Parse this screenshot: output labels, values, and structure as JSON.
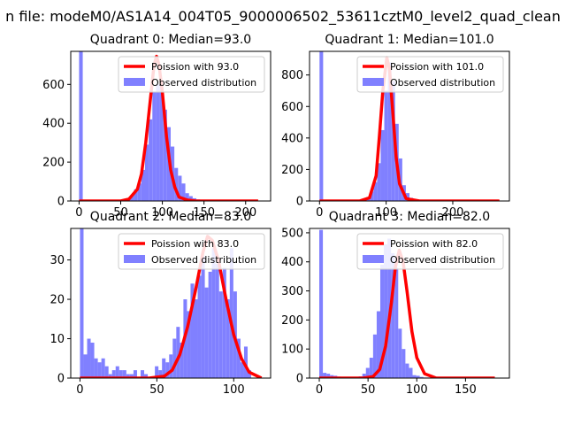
{
  "suptitle": "n file: modeM0/AS1A14_004T05_9000006502_53611cztM0_level2_quad_clean",
  "colors": {
    "hist": "#8080ff",
    "curve": "#ff0000",
    "axis": "#000000",
    "legend_edge": "#cccccc"
  },
  "chart_data": [
    {
      "type": "bar",
      "title": "Quadrant 0: Median=93.0",
      "xlabel": "",
      "ylabel": "",
      "xlim": [
        -10,
        230
      ],
      "ylim": [
        0,
        770
      ],
      "xticks": [
        0,
        50,
        100,
        150,
        200
      ],
      "yticks": [
        0,
        200,
        400,
        600
      ],
      "legend": {
        "position": "top-right",
        "curve_label": "Poission with 93.0",
        "hist_label": "Observed distribution"
      },
      "hist": {
        "bin_start": 0,
        "bin_width": 4.4,
        "values": [
          770,
          6,
          5,
          2,
          2,
          1,
          2,
          2,
          3,
          2,
          2,
          3,
          8,
          14,
          30,
          60,
          90,
          160,
          290,
          420,
          560,
          600,
          590,
          470,
          380,
          280,
          170,
          130,
          90,
          40,
          25,
          14,
          8,
          6,
          4,
          3,
          2,
          1,
          1,
          1,
          1,
          0,
          0,
          0,
          0,
          0,
          0,
          0,
          0,
          0
        ]
      },
      "curve": {
        "x": [
          0,
          50,
          60,
          70,
          75,
          80,
          85,
          90,
          93,
          96,
          100,
          105,
          110,
          115,
          120,
          130,
          140,
          160,
          215
        ],
        "y": [
          0,
          0,
          10,
          60,
          140,
          300,
          500,
          700,
          745,
          700,
          560,
          330,
          160,
          70,
          20,
          5,
          0,
          0,
          0
        ]
      }
    },
    {
      "type": "bar",
      "title": "Quadrant 1: Median=101.0",
      "xlabel": "",
      "ylabel": "",
      "xlim": [
        -15,
        285
      ],
      "ylim": [
        0,
        950
      ],
      "xticks": [
        0,
        100,
        200
      ],
      "yticks": [
        0,
        200,
        400,
        600,
        800
      ],
      "legend": {
        "position": "top-right",
        "curve_label": "Poission with 101.0",
        "hist_label": "Observed distribution"
      },
      "hist": {
        "bin_start": 0,
        "bin_width": 5.4,
        "values": [
          950,
          5,
          3,
          2,
          2,
          2,
          2,
          2,
          2,
          2,
          3,
          5,
          10,
          25,
          60,
          120,
          240,
          450,
          700,
          880,
          760,
          490,
          270,
          100,
          50,
          20,
          10,
          5,
          2,
          1,
          1,
          1,
          0,
          0,
          0,
          0,
          0,
          0,
          0,
          0,
          0,
          0,
          0,
          0,
          0,
          0,
          0,
          0,
          0,
          0
        ]
      },
      "curve": {
        "x": [
          0,
          60,
          75,
          85,
          90,
          95,
          101,
          105,
          110,
          115,
          120,
          130,
          150,
          270
        ],
        "y": [
          0,
          0,
          20,
          160,
          420,
          700,
          910,
          840,
          560,
          280,
          110,
          15,
          0,
          0
        ]
      }
    },
    {
      "type": "bar",
      "title": "Quadrant 2: Median=83.0",
      "xlabel": "",
      "ylabel": "",
      "xlim": [
        -6,
        124
      ],
      "ylim": [
        0,
        38
      ],
      "xticks": [
        0,
        50,
        100
      ],
      "yticks": [
        0,
        10,
        20,
        30
      ],
      "legend": {
        "position": "top-right",
        "curve_label": "Poission with 83.0",
        "hist_label": "Observed distribution"
      },
      "hist": {
        "bin_start": 0,
        "bin_width": 2.32,
        "values": [
          38,
          6,
          10,
          9,
          5,
          4,
          5,
          3,
          1,
          2,
          3,
          2,
          2,
          1,
          1,
          2,
          0,
          2,
          1,
          0,
          0,
          3,
          2,
          5,
          4,
          6,
          10,
          13,
          9,
          20,
          17,
          24,
          20,
          26,
          31,
          23,
          27,
          33,
          29,
          22,
          28,
          20,
          33,
          22,
          10,
          4,
          8,
          2,
          0,
          0
        ]
      },
      "curve": {
        "x": [
          0,
          45,
          55,
          60,
          65,
          70,
          75,
          80,
          83,
          86,
          90,
          95,
          100,
          105,
          110,
          118
        ],
        "y": [
          0,
          0,
          0.5,
          2,
          6,
          13,
          22,
          32,
          36,
          35,
          30,
          20,
          11,
          5,
          1.5,
          0
        ]
      }
    },
    {
      "type": "bar",
      "title": "Quadrant 3: Median=82.0",
      "xlabel": "",
      "ylabel": "",
      "xlim": [
        -10,
        195
      ],
      "ylim": [
        0,
        515
      ],
      "xticks": [
        0,
        50,
        100,
        150
      ],
      "yticks": [
        0,
        100,
        200,
        300,
        400,
        500
      ],
      "legend": {
        "position": "top-right",
        "curve_label": "Poission with 82.0",
        "hist_label": "Observed distribution"
      },
      "hist": {
        "bin_start": 0,
        "bin_width": 3.68,
        "values": [
          510,
          18,
          15,
          10,
          8,
          5,
          3,
          3,
          2,
          2,
          4,
          6,
          15,
          35,
          70,
          150,
          230,
          390,
          460,
          480,
          430,
          380,
          170,
          100,
          50,
          35,
          10,
          8,
          4,
          2,
          2,
          1,
          1,
          0,
          0,
          0,
          0,
          0,
          0,
          0,
          0,
          0,
          0,
          0,
          0,
          0,
          0,
          0,
          0,
          0
        ]
      },
      "curve": {
        "x": [
          0,
          45,
          55,
          62,
          68,
          74,
          78,
          82,
          86,
          90,
          95,
          100,
          108,
          120,
          180
        ],
        "y": [
          0,
          0,
          5,
          30,
          110,
          260,
          380,
          440,
          400,
          300,
          160,
          70,
          15,
          0,
          0
        ]
      }
    }
  ]
}
